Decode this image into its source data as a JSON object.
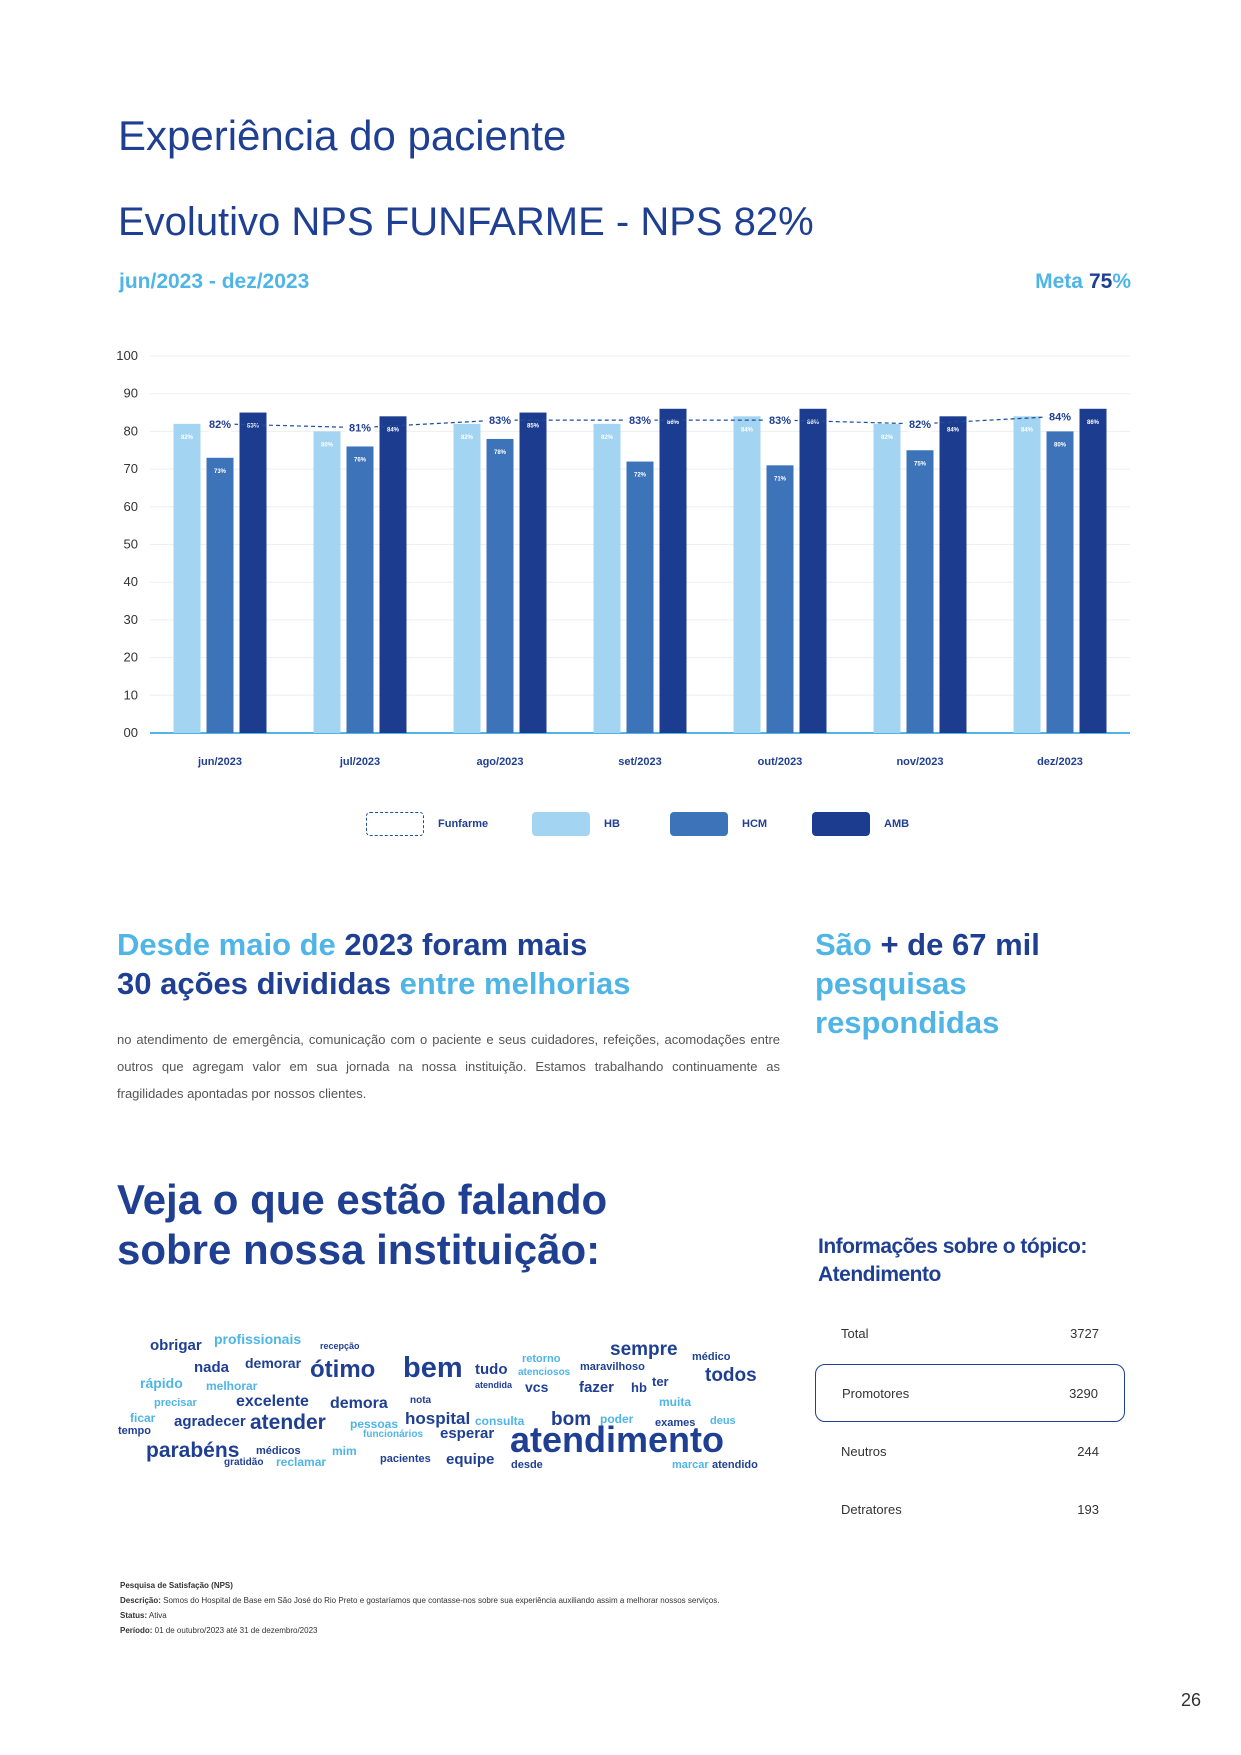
{
  "page": {
    "title": "Experiência do paciente",
    "subtitle": "Evolutivo NPS FUNFARME - NPS 82%",
    "period": "jun/2023 - dez/2023",
    "meta_label": "Meta",
    "meta_value": "75",
    "meta_pct": "%",
    "page_number": "26"
  },
  "colors": {
    "hb": "#a3d4f1",
    "hcm": "#3d73b8",
    "amb": "#1c3c8f",
    "funfarme": "#1f4e9c",
    "accent": "#4fb5e6"
  },
  "chart_data": {
    "type": "bar",
    "categories": [
      "jun/2023",
      "jul/2023",
      "ago/2023",
      "set/2023",
      "out/2023",
      "nov/2023",
      "dez/2023"
    ],
    "ylim": [
      0,
      100
    ],
    "yticks": [
      "00",
      "10",
      "20",
      "30",
      "40",
      "50",
      "60",
      "70",
      "80",
      "90",
      "100"
    ],
    "series": [
      {
        "name": "HB",
        "values": [
          82,
          80,
          82,
          82,
          84,
          82,
          84
        ],
        "labels": [
          "82%",
          "80%",
          "82%",
          "82%",
          "84%",
          "82%",
          "84%"
        ]
      },
      {
        "name": "HCM",
        "values": [
          73,
          76,
          78,
          72,
          71,
          75,
          80
        ],
        "labels": [
          "73%",
          "76%",
          "78%",
          "72%",
          "71%",
          "75%",
          "80%"
        ]
      },
      {
        "name": "AMB",
        "values": [
          85,
          84,
          85,
          86,
          86,
          84,
          86
        ],
        "labels": [
          "85%",
          "84%",
          "85%",
          "86%",
          "86%",
          "84%",
          "86%"
        ]
      }
    ],
    "line": {
      "name": "Funfarme",
      "values": [
        82,
        81,
        83,
        83,
        83,
        82,
        84
      ],
      "labels": [
        "82%",
        "81%",
        "83%",
        "83%",
        "83%",
        "82%",
        "84%"
      ]
    },
    "legend": [
      "Funfarme",
      "HB",
      "HCM",
      "AMB"
    ],
    "grid": true,
    "legend_position": "bottom"
  },
  "section_actions": {
    "line1_light": "Desde maio de ",
    "line1_dark": "2023 foram mais",
    "line2_dark": "30 ações divididas ",
    "line2_light": "entre melhorias",
    "paragraph": "no atendimento de emergência, comunicação com o paciente e seus cuidadores, refeições, acomodações entre outros que agregam valor em sua jornada na nossa instituição. Estamos trabalhando continuamente as fragilidades apontadas por nossos clientes."
  },
  "section_surveys": {
    "l1_light": "São ",
    "l1_dark": "+ de 67 mil",
    "l2": "pesquisas",
    "l3": "respondidas"
  },
  "section_cloud": {
    "heading_line1": "Veja o que estão falando",
    "heading_line2": "sobre nossa instituição:",
    "words": [
      {
        "t": "obrigar",
        "s": 15,
        "c": "d"
      },
      {
        "t": "profissionais",
        "s": 14,
        "c": "l"
      },
      {
        "t": "recepção",
        "s": 9,
        "c": "d"
      },
      {
        "t": "nada",
        "s": 15,
        "c": "d"
      },
      {
        "t": "demorar",
        "s": 14,
        "c": "d"
      },
      {
        "t": "ótimo",
        "s": 24,
        "c": "d"
      },
      {
        "t": "bem",
        "s": 29,
        "c": "d"
      },
      {
        "t": "tudo",
        "s": 15,
        "c": "d"
      },
      {
        "t": "retorno",
        "s": 11,
        "c": "l"
      },
      {
        "t": "atenciosos",
        "s": 10,
        "c": "l"
      },
      {
        "t": "maravilhoso",
        "s": 11,
        "c": "d"
      },
      {
        "t": "sempre",
        "s": 19,
        "c": "d"
      },
      {
        "t": "médico",
        "s": 11,
        "c": "d"
      },
      {
        "t": "rápido",
        "s": 14,
        "c": "l"
      },
      {
        "t": "melhorar",
        "s": 12,
        "c": "l"
      },
      {
        "t": "atendida",
        "s": 9,
        "c": "d"
      },
      {
        "t": "vcs",
        "s": 14,
        "c": "d"
      },
      {
        "t": "fazer",
        "s": 15,
        "c": "d"
      },
      {
        "t": "hb",
        "s": 13,
        "c": "d"
      },
      {
        "t": "ter",
        "s": 13,
        "c": "d"
      },
      {
        "t": "todos",
        "s": 19,
        "c": "d"
      },
      {
        "t": "precisar",
        "s": 11,
        "c": "l"
      },
      {
        "t": "excelente",
        "s": 16,
        "c": "d"
      },
      {
        "t": "demora",
        "s": 16,
        "c": "d"
      },
      {
        "t": "nota",
        "s": 10,
        "c": "d"
      },
      {
        "t": "muita",
        "s": 12,
        "c": "l"
      },
      {
        "t": "ficar",
        "s": 12,
        "c": "l"
      },
      {
        "t": "agradecer",
        "s": 15,
        "c": "d"
      },
      {
        "t": "hospital",
        "s": 17,
        "c": "d"
      },
      {
        "t": "consulta",
        "s": 12,
        "c": "l"
      },
      {
        "t": "bom",
        "s": 19,
        "c": "d"
      },
      {
        "t": "poder",
        "s": 12,
        "c": "l"
      },
      {
        "t": "exames",
        "s": 11,
        "c": "d"
      },
      {
        "t": "deus",
        "s": 11,
        "c": "l"
      },
      {
        "t": "tempo",
        "s": 11,
        "c": "d"
      },
      {
        "t": "atender",
        "s": 21,
        "c": "d"
      },
      {
        "t": "pessoas",
        "s": 12,
        "c": "l"
      },
      {
        "t": "funcionários",
        "s": 10,
        "c": "l"
      },
      {
        "t": "esperar",
        "s": 15,
        "c": "d"
      },
      {
        "t": "atendimento",
        "s": 36,
        "c": "d"
      },
      {
        "t": "parabéns",
        "s": 21,
        "c": "d"
      },
      {
        "t": "médicos",
        "s": 11,
        "c": "d"
      },
      {
        "t": "mim",
        "s": 12,
        "c": "l"
      },
      {
        "t": "gratidão",
        "s": 10,
        "c": "d"
      },
      {
        "t": "reclamar",
        "s": 12,
        "c": "l"
      },
      {
        "t": "pacientes",
        "s": 11,
        "c": "d"
      },
      {
        "t": "equipe",
        "s": 15,
        "c": "d"
      },
      {
        "t": "desde",
        "s": 11,
        "c": "d"
      },
      {
        "t": "marcar",
        "s": 11,
        "c": "l"
      },
      {
        "t": "atendido",
        "s": 11,
        "c": "d"
      }
    ]
  },
  "topic": {
    "title_line1": "Informações sobre o tópico:",
    "title_line2": "Atendimento",
    "rows": [
      {
        "label": "Total",
        "value": "3727"
      },
      {
        "label": "Promotores",
        "value": "3290"
      },
      {
        "label": "Neutros",
        "value": "244"
      },
      {
        "label": "Detratores",
        "value": "193"
      }
    ]
  },
  "footer": {
    "title": "Pesquisa de Satisfação (NPS)",
    "desc_label": "Descrição:",
    "desc": " Somos do Hospital de Base em São José do Rio Preto e gostaríamos que contasse-nos sobre sua experiência auxiliando assim a melhorar nossos serviços.",
    "status_label": "Status:",
    "status": " Ativa",
    "period_label": "Período:",
    "period": " 01 de outubro/2023 até 31 de dezembro/2023"
  }
}
